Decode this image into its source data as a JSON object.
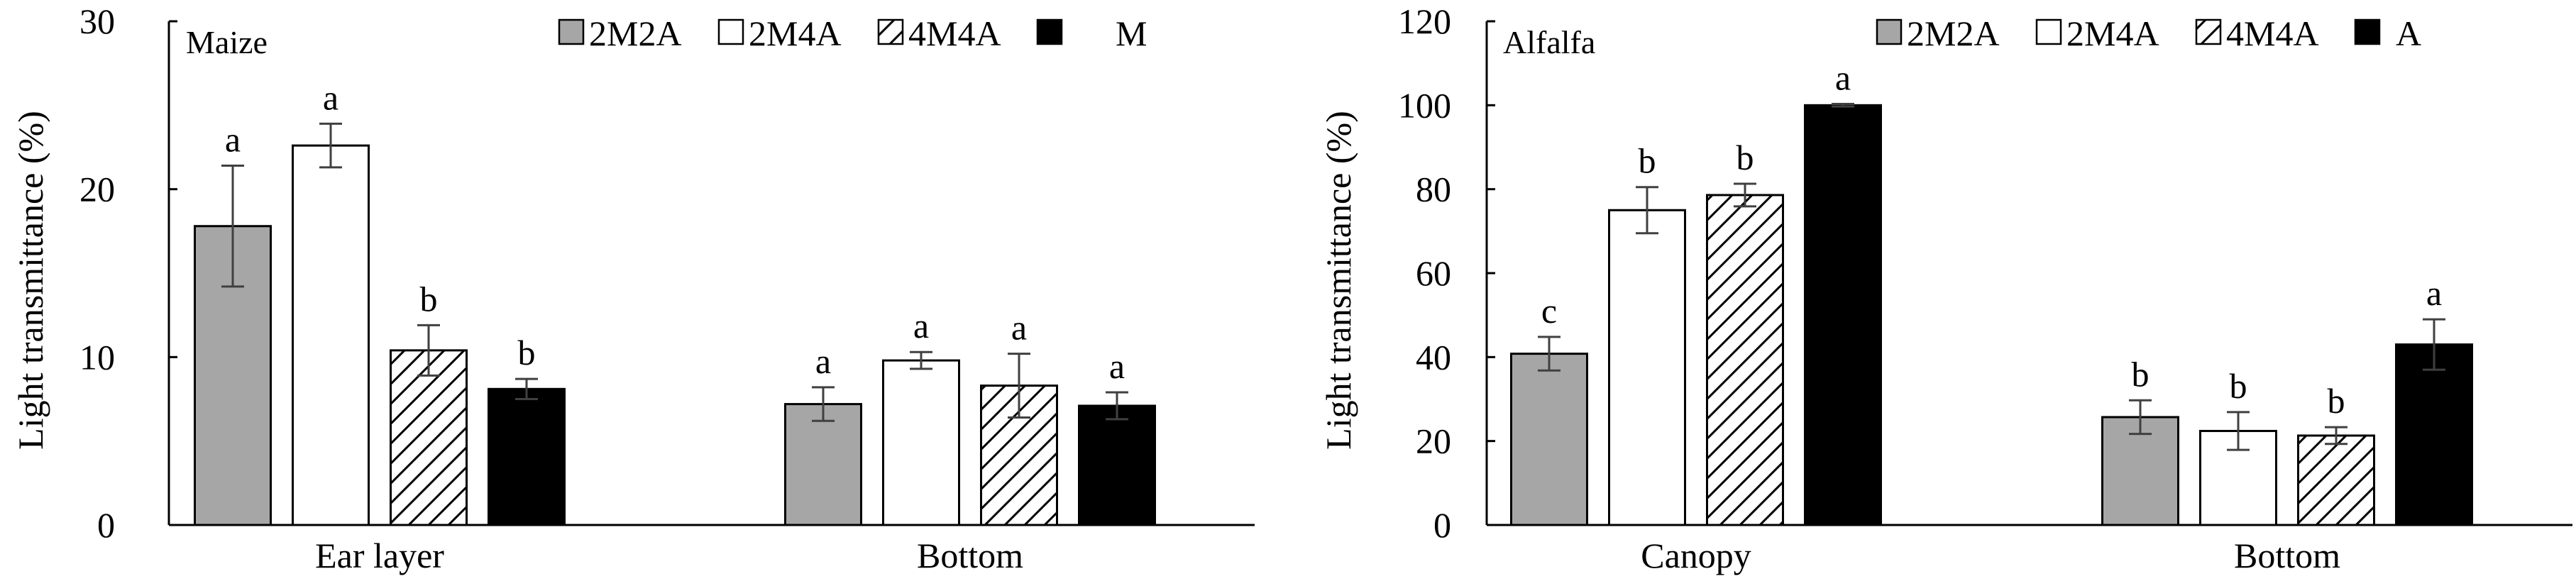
{
  "colors": {
    "2M2A": "#a6a6a6",
    "2M4A": "#ffffff",
    "4M4A": "hatch",
    "mono": "#000000",
    "error_bar": "#404040"
  },
  "chart_data": [
    {
      "type": "bar",
      "title": "Maize",
      "ylabel": "Light transmittance (%)",
      "xlabel": "",
      "ylim": [
        0,
        30
      ],
      "yticks": [
        0,
        10,
        20,
        30
      ],
      "grid": false,
      "legend_position": "top",
      "categories": [
        "Ear layer",
        "Bottom"
      ],
      "series": [
        {
          "name": "2M2A",
          "fill": "gray",
          "values": [
            17.8,
            7.2
          ],
          "errors": [
            3.6,
            1.0
          ],
          "letters": [
            "a",
            "a"
          ]
        },
        {
          "name": "2M4A",
          "fill": "white",
          "values": [
            22.6,
            9.8
          ],
          "errors": [
            1.3,
            0.5
          ],
          "letters": [
            "a",
            "a"
          ]
        },
        {
          "name": "4M4A",
          "fill": "hatch",
          "values": [
            10.4,
            8.3
          ],
          "errors": [
            1.5,
            1.9
          ],
          "letters": [
            "b",
            "a"
          ]
        },
        {
          "name": "M",
          "fill": "black",
          "values": [
            8.1,
            7.1
          ],
          "errors": [
            0.6,
            0.8
          ],
          "letters": [
            "b",
            "a"
          ]
        }
      ]
    },
    {
      "type": "bar",
      "title": "Alfalfa",
      "ylabel": "Light transmittance (%)",
      "xlabel": "",
      "ylim": [
        0,
        120
      ],
      "yticks": [
        0,
        20,
        40,
        60,
        80,
        100,
        120
      ],
      "grid": false,
      "legend_position": "top",
      "categories": [
        "Canopy",
        "Bottom"
      ],
      "series": [
        {
          "name": "2M2A",
          "fill": "gray",
          "values": [
            40.8,
            25.7
          ],
          "errors": [
            4.0,
            4.0
          ],
          "letters": [
            "c",
            "b"
          ]
        },
        {
          "name": "2M4A",
          "fill": "white",
          "values": [
            75.0,
            22.4
          ],
          "errors": [
            5.5,
            4.5
          ],
          "letters": [
            "b",
            "b"
          ]
        },
        {
          "name": "4M4A",
          "fill": "hatch",
          "values": [
            78.6,
            21.3
          ],
          "errors": [
            2.7,
            2.0
          ],
          "letters": [
            "b",
            "b"
          ]
        },
        {
          "name": "A",
          "fill": "black",
          "values": [
            100.0,
            43.0
          ],
          "errors": [
            0.3,
            6.0
          ],
          "letters": [
            "a",
            "a"
          ]
        }
      ]
    }
  ]
}
